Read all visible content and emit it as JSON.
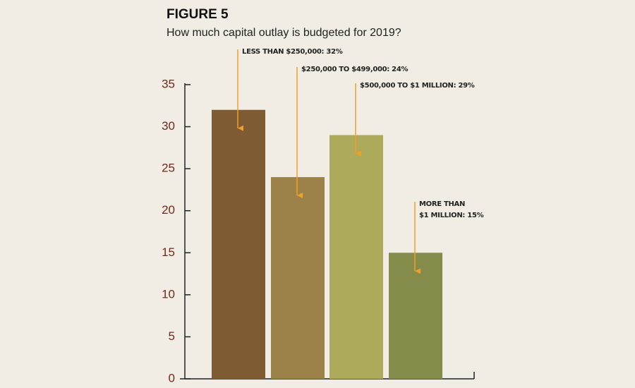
{
  "chart_data": {
    "type": "bar",
    "figure_label": "FIGURE 5",
    "title": "How much capital outlay is budgeted for 2019?",
    "categories": [
      null,
      null,
      null,
      null
    ],
    "values": [
      32,
      24,
      29,
      15
    ],
    "value_labels": [
      "LESS THAN $250,000: 32%",
      "$250,000 TO $499,000: 24%",
      "$500,000 TO $1 MILLION: 29%",
      "MORE THAN\n$1 MILLION: 15%"
    ],
    "colors": [
      "#7e5b32",
      "#9c8249",
      "#adaa5b",
      "#858b4a"
    ],
    "annotation_color": "#f0a02a",
    "ylim": [
      0,
      35
    ],
    "yticks": [
      0,
      5,
      10,
      15,
      20,
      25,
      30,
      35
    ],
    "grid": false
  }
}
